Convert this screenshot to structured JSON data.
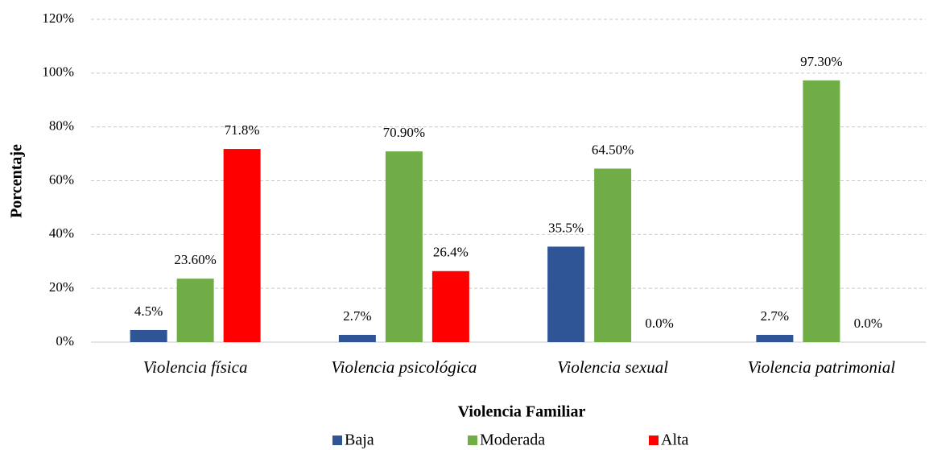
{
  "chart_data": {
    "type": "bar",
    "categories": [
      "Violencia física",
      "Violencia psicológica",
      "Violencia sexual",
      "Violencia patrimonial"
    ],
    "x_label": "Violencia Familiar",
    "y_label": "Porcentaje",
    "series": [
      {
        "name": "Baja",
        "color": "#2f5597",
        "values": [
          4.5,
          2.7,
          35.5,
          2.7
        ],
        "value_labels": [
          "4.5%",
          "2.7%",
          "35.5%",
          "2.7%"
        ]
      },
      {
        "name": "Moderada",
        "color": "#70ad47",
        "values": [
          23.6,
          70.9,
          64.5,
          97.3
        ],
        "value_labels": [
          "23.60%",
          "70.90%",
          "64.50%",
          "97.30%"
        ]
      },
      {
        "name": "Alta",
        "color": "#ff0000",
        "values": [
          71.8,
          26.4,
          0,
          0
        ],
        "value_labels": [
          "71.8%",
          "26.4%",
          "0.0%",
          "0.0%"
        ]
      }
    ],
    "ylim": [
      0,
      120
    ],
    "yticks": [
      {
        "value": 0,
        "label": "0%"
      },
      {
        "value": 20,
        "label": "20%"
      },
      {
        "value": 40,
        "label": "40%"
      },
      {
        "value": 60,
        "label": "60%"
      },
      {
        "value": 80,
        "label": "80%"
      },
      {
        "value": 100,
        "label": "100%"
      },
      {
        "value": 120,
        "label": "120%"
      }
    ],
    "grid": true,
    "legend": "bottom"
  }
}
